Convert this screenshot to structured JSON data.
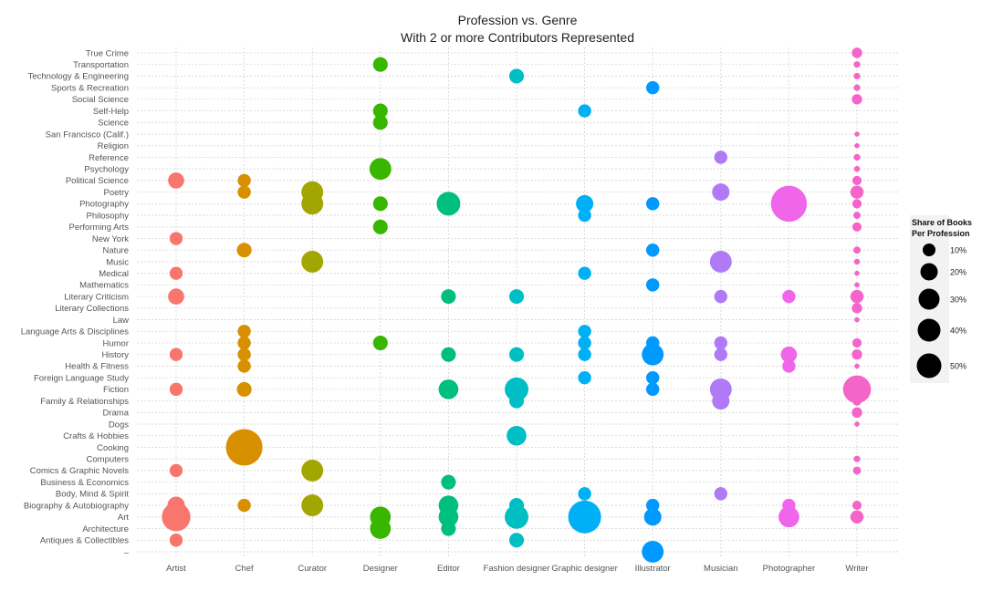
{
  "chart_data": {
    "type": "scatter",
    "title": "Profession vs. Genre",
    "subtitle": "With 2 or more Contributors Represented",
    "xlabel": "",
    "ylabel": "",
    "grid": true,
    "professions": [
      "Artist",
      "Chef",
      "Curator",
      "Designer",
      "Editor",
      "Fashion designer",
      "Graphic designer",
      "Illustrator",
      "Musician",
      "Photographer",
      "Writer"
    ],
    "colors": {
      "Artist": "#F8766D",
      "Chef": "#D89000",
      "Curator": "#A3A500",
      "Designer": "#39B600",
      "Editor": "#00BF7D",
      "Fashion designer": "#00BFC4",
      "Graphic designer": "#00B0F6",
      "Illustrator": "#0099FF",
      "Musician": "#B07AF6",
      "Photographer": "#F066EA",
      "Writer": "#F564C8"
    },
    "genres": [
      "True Crime",
      "Transportation",
      "Technology & Engineering",
      "Sports & Recreation",
      "Social Science",
      "Self-Help",
      "Science",
      "San Francisco (Calif.)",
      "Religion",
      "Reference",
      "Psychology",
      "Political Science",
      "Poetry",
      "Photography",
      "Philosophy",
      "Performing Arts",
      "New York",
      "Nature",
      "Music",
      "Medical",
      "Mathematics",
      "Literary Criticism",
      "Literary Collections",
      "Law",
      "Language Arts & Disciplines",
      "Humor",
      "History",
      "Health & Fitness",
      "Foreign Language Study",
      "Fiction",
      "Family & Relationships",
      "Drama",
      "Dogs",
      "Crafts & Hobbies",
      "Cooking",
      "Computers",
      "Comics & Graphic Novels",
      "Business & Economics",
      "Body, Mind & Spirit",
      "Biography & Autobiography",
      "Art",
      "Architecture",
      "Antiques & Collectibles",
      ""
    ],
    "points": [
      [
        "Artist",
        "Political Science",
        6
      ],
      [
        "Artist",
        "New York",
        4
      ],
      [
        "Artist",
        "Medical",
        4
      ],
      [
        "Artist",
        "Literary Criticism",
        6
      ],
      [
        "Artist",
        "History",
        4
      ],
      [
        "Artist",
        "Fiction",
        4
      ],
      [
        "Artist",
        "Comics & Graphic Novels",
        4
      ],
      [
        "Artist",
        "Biography & Autobiography",
        7
      ],
      [
        "Artist",
        "Art",
        19
      ],
      [
        "Artist",
        "Antiques & Collectibles",
        4
      ],
      [
        "Chef",
        "Political Science",
        4
      ],
      [
        "Chef",
        "Poetry",
        4
      ],
      [
        "Chef",
        "Nature",
        5
      ],
      [
        "Chef",
        "Language Arts & Disciplines",
        4
      ],
      [
        "Chef",
        "Humor",
        4
      ],
      [
        "Chef",
        "History",
        4
      ],
      [
        "Chef",
        "Health & Fitness",
        4
      ],
      [
        "Chef",
        "Fiction",
        5
      ],
      [
        "Chef",
        "Cooking",
        31
      ],
      [
        "Chef",
        "Biography & Autobiography",
        4
      ],
      [
        "Curator",
        "Poetry",
        11
      ],
      [
        "Curator",
        "Photography",
        11
      ],
      [
        "Curator",
        "Music",
        11
      ],
      [
        "Curator",
        "Comics & Graphic Novels",
        11
      ],
      [
        "Curator",
        "Biography & Autobiography",
        11
      ],
      [
        "Designer",
        "Transportation",
        5
      ],
      [
        "Designer",
        "Self-Help",
        5
      ],
      [
        "Designer",
        "Science",
        5
      ],
      [
        "Designer",
        "Psychology",
        11
      ],
      [
        "Designer",
        "Photography",
        5
      ],
      [
        "Designer",
        "Performing Arts",
        5
      ],
      [
        "Designer",
        "Humor",
        5
      ],
      [
        "Designer",
        "Art",
        10
      ],
      [
        "Designer",
        "Architecture",
        10
      ],
      [
        "Editor",
        "Photography",
        13
      ],
      [
        "Editor",
        "Literary Criticism",
        5
      ],
      [
        "Editor",
        "History",
        5
      ],
      [
        "Editor",
        "Fiction",
        9
      ],
      [
        "Editor",
        "Business & Economics",
        5
      ],
      [
        "Editor",
        "Biography & Autobiography",
        9
      ],
      [
        "Editor",
        "Art",
        9
      ],
      [
        "Editor",
        "Architecture",
        5
      ],
      [
        "Fashion designer",
        "Technology & Engineering",
        5
      ],
      [
        "Fashion designer",
        "Literary Criticism",
        5
      ],
      [
        "Fashion designer",
        "History",
        5
      ],
      [
        "Fashion designer",
        "Fiction",
        13
      ],
      [
        "Fashion designer",
        "Family & Relationships",
        5
      ],
      [
        "Fashion designer",
        "Crafts & Hobbies",
        9
      ],
      [
        "Fashion designer",
        "Biography & Autobiography",
        5
      ],
      [
        "Fashion designer",
        "Art",
        13
      ],
      [
        "Fashion designer",
        "Antiques & Collectibles",
        5
      ],
      [
        "Graphic designer",
        "Self-Help",
        4
      ],
      [
        "Graphic designer",
        "Photography",
        7
      ],
      [
        "Graphic designer",
        "Philosophy",
        4
      ],
      [
        "Graphic designer",
        "Medical",
        4
      ],
      [
        "Graphic designer",
        "Language Arts & Disciplines",
        4
      ],
      [
        "Graphic designer",
        "Humor",
        4
      ],
      [
        "Graphic designer",
        "History",
        4
      ],
      [
        "Graphic designer",
        "Foreign Language Study",
        4
      ],
      [
        "Graphic designer",
        "Body, Mind & Spirit",
        4
      ],
      [
        "Graphic designer",
        "Art",
        25
      ],
      [
        "Illustrator",
        "Sports & Recreation",
        4
      ],
      [
        "Illustrator",
        "Photography",
        4
      ],
      [
        "Illustrator",
        "Nature",
        4
      ],
      [
        "Illustrator",
        "Mathematics",
        4
      ],
      [
        "Illustrator",
        "Humor",
        4
      ],
      [
        "Illustrator",
        "History",
        11
      ],
      [
        "Illustrator",
        "Foreign Language Study",
        4
      ],
      [
        "Illustrator",
        "Fiction",
        4
      ],
      [
        "Illustrator",
        "Biography & Autobiography",
        4
      ],
      [
        "Illustrator",
        "Art",
        7
      ],
      [
        "Illustrator",
        "",
        11
      ],
      [
        "Musician",
        "Reference",
        4
      ],
      [
        "Musician",
        "Poetry",
        7
      ],
      [
        "Musician",
        "Music",
        11
      ],
      [
        "Musician",
        "Literary Criticism",
        4
      ],
      [
        "Musician",
        "Humor",
        4
      ],
      [
        "Musician",
        "History",
        4
      ],
      [
        "Musician",
        "Fiction",
        11
      ],
      [
        "Musician",
        "Family & Relationships",
        7
      ],
      [
        "Musician",
        "Body, Mind & Spirit",
        4
      ],
      [
        "Photographer",
        "Photography",
        30
      ],
      [
        "Photographer",
        "Literary Criticism",
        4
      ],
      [
        "Photographer",
        "History",
        6
      ],
      [
        "Photographer",
        "Health & Fitness",
        4
      ],
      [
        "Photographer",
        "Biography & Autobiography",
        4
      ],
      [
        "Photographer",
        "Art",
        10
      ],
      [
        "Writer",
        "True Crime",
        2.5
      ],
      [
        "Writer",
        "Transportation",
        1
      ],
      [
        "Writer",
        "Technology & Engineering",
        1
      ],
      [
        "Writer",
        "Sports & Recreation",
        1
      ],
      [
        "Writer",
        "Social Science",
        2.5
      ],
      [
        "Writer",
        "San Francisco (Calif.)",
        0.6
      ],
      [
        "Writer",
        "Religion",
        0.6
      ],
      [
        "Writer",
        "Reference",
        1
      ],
      [
        "Writer",
        "Psychology",
        0.8
      ],
      [
        "Writer",
        "Political Science",
        2
      ],
      [
        "Writer",
        "Poetry",
        4
      ],
      [
        "Writer",
        "Photography",
        2
      ],
      [
        "Writer",
        "Philosophy",
        1.2
      ],
      [
        "Writer",
        "Performing Arts",
        2
      ],
      [
        "Writer",
        "Nature",
        1.2
      ],
      [
        "Writer",
        "Music",
        0.8
      ],
      [
        "Writer",
        "Medical",
        0.6
      ],
      [
        "Writer",
        "Mathematics",
        0.6
      ],
      [
        "Writer",
        "Literary Criticism",
        4
      ],
      [
        "Writer",
        "Literary Collections",
        2.5
      ],
      [
        "Writer",
        "Law",
        0.6
      ],
      [
        "Writer",
        "Humor",
        2
      ],
      [
        "Writer",
        "History",
        2.5
      ],
      [
        "Writer",
        "Health & Fitness",
        0.6
      ],
      [
        "Writer",
        "Fiction",
        18
      ],
      [
        "Writer",
        "Family & Relationships",
        2
      ],
      [
        "Writer",
        "Drama",
        2.5
      ],
      [
        "Writer",
        "Dogs",
        0.6
      ],
      [
        "Writer",
        "Computers",
        1
      ],
      [
        "Writer",
        "Comics & Graphic Novels",
        1.5
      ],
      [
        "Writer",
        "Biography & Autobiography",
        2
      ],
      [
        "Writer",
        "Art",
        4
      ]
    ],
    "legend": {
      "title_line1": "Share of Books",
      "title_line2": "Per Profession",
      "position": "right",
      "entries": [
        {
          "value": 10,
          "label": "10%"
        },
        {
          "value": 20,
          "label": "20%"
        },
        {
          "value": 30,
          "label": "30%"
        },
        {
          "value": 40,
          "label": "40%"
        },
        {
          "value": 50,
          "label": "50%"
        }
      ]
    }
  }
}
